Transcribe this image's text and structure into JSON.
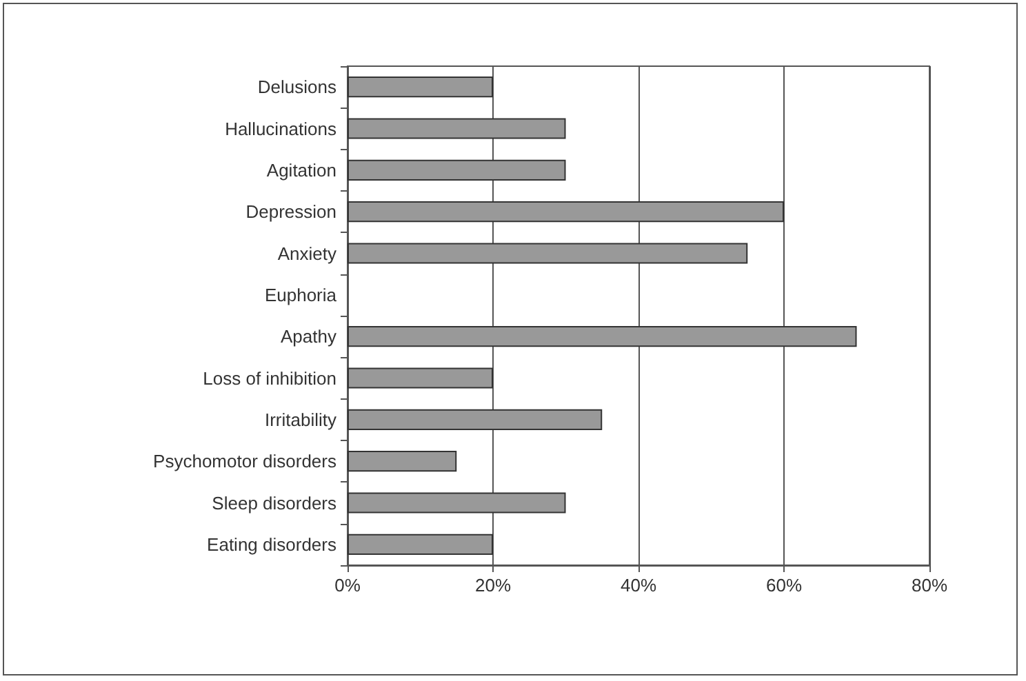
{
  "chart_data": {
    "type": "bar",
    "orientation": "horizontal",
    "categories": [
      "Delusions",
      "Hallucinations",
      "Agitation",
      "Depression",
      "Anxiety",
      "Euphoria",
      "Apathy",
      "Loss of inhibition",
      "Irritability",
      "Psychomotor disorders",
      "Sleep disorders",
      "Eating disorders"
    ],
    "values": [
      20,
      30,
      30,
      60,
      55,
      0,
      70,
      20,
      35,
      15,
      30,
      20
    ],
    "color": "#999999",
    "xlim": [
      0,
      80
    ],
    "xticks": [
      {
        "value": 0,
        "label": "0%"
      },
      {
        "value": 20,
        "label": "20%"
      },
      {
        "value": 40,
        "label": "40%"
      },
      {
        "value": 60,
        "label": "60%"
      },
      {
        "value": 80,
        "label": "80%"
      }
    ],
    "grid": "x"
  }
}
